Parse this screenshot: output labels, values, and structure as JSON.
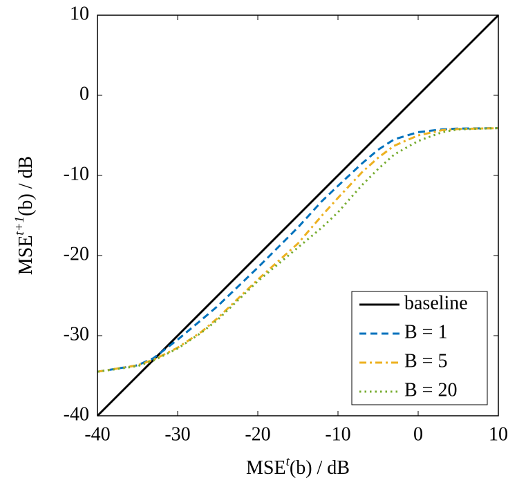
{
  "chart_data": {
    "type": "line",
    "xlabel": {
      "base": "MSE",
      "sup": "t",
      "rest": "(b) / dB"
    },
    "ylabel": {
      "base": "MSE",
      "sup": "t+1",
      "rest": "(b) / dB"
    },
    "x": [
      -40,
      -35,
      -33,
      -30,
      -27,
      -25,
      -20,
      -15,
      -12,
      -10,
      -7,
      -5,
      -3,
      0,
      3,
      5,
      10
    ],
    "series": [
      {
        "name": "baseline",
        "color": "#000000",
        "dash": "solid",
        "values": [
          -40,
          -35,
          -33,
          -30,
          -27,
          -25,
          -20,
          -15,
          -12,
          -10,
          -7,
          -5,
          -3,
          0,
          3,
          5,
          10
        ]
      },
      {
        "name": "B = 1",
        "color": "#0072bd",
        "dash": "dashed",
        "values": [
          -34.5,
          -33.7,
          -32.8,
          -30.5,
          -28,
          -26.3,
          -21.5,
          -16.5,
          -13.2,
          -11.3,
          -8.5,
          -6.8,
          -5.5,
          -4.6,
          -4.25,
          -4.15,
          -4.1
        ]
      },
      {
        "name": "B = 5",
        "color": "#edb120",
        "dash": "dashdot",
        "values": [
          -34.5,
          -33.7,
          -33,
          -31.5,
          -29.5,
          -27.8,
          -23,
          -18.5,
          -15,
          -12.8,
          -9.6,
          -7.8,
          -6.3,
          -5,
          -4.35,
          -4.2,
          -4.1
        ]
      },
      {
        "name": "B = 20",
        "color": "#77ac30",
        "dash": "dotted",
        "values": [
          -34.5,
          -33.8,
          -33.1,
          -31.6,
          -29.6,
          -28,
          -23.2,
          -19,
          -16.5,
          -14.6,
          -11.2,
          -9.2,
          -7.4,
          -5.7,
          -4.6,
          -4.25,
          -4.1
        ]
      }
    ],
    "xlim": [
      -40,
      10
    ],
    "ylim": [
      -40,
      10
    ],
    "xticks": [
      -40,
      -30,
      -20,
      -10,
      0,
      10
    ],
    "yticks": [
      -40,
      -30,
      -20,
      -10,
      0,
      10
    ],
    "legend": "lower right"
  }
}
